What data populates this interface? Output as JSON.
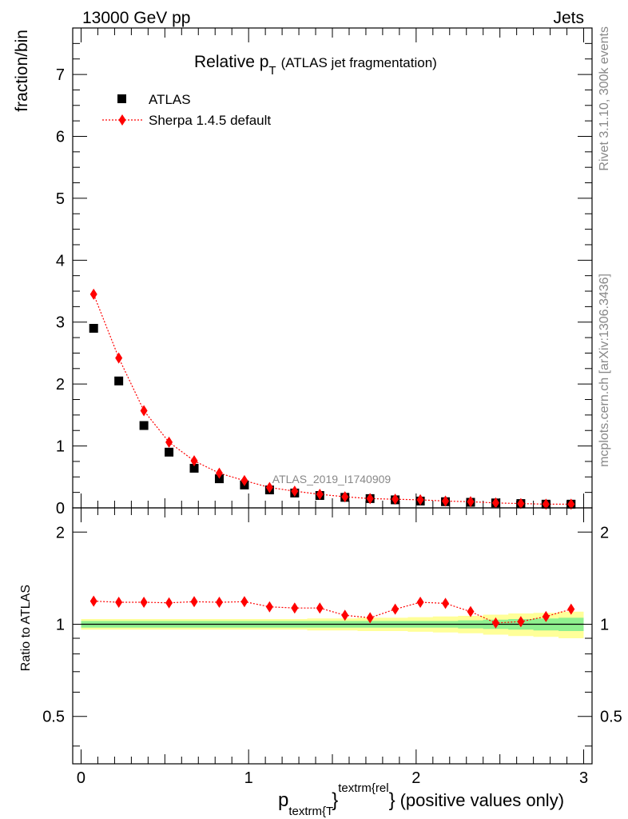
{
  "header": {
    "left": "13000 GeV pp",
    "right": "Jets"
  },
  "side_labels": {
    "rivet": "Rivet 3.1.10,  300k events",
    "mcplots": "mcplots.cern.ch [arXiv:1306.3436]"
  },
  "chart_data": [
    {
      "type": "scatter",
      "title": "Relative p",
      "title_sub": "T",
      "title_suffix": "(ATLAS jet fragmentation)",
      "ylabel": "fraction/bin",
      "watermark": "ATLAS_2019_I1740909",
      "xlim": [
        -0.05,
        3.05
      ],
      "ylim": [
        0,
        7.75
      ],
      "xticks": [
        "0",
        "1",
        "2",
        "3"
      ],
      "yticks": [
        "0",
        "1",
        "2",
        "3",
        "4",
        "5",
        "6",
        "7"
      ],
      "x": [
        0.075,
        0.225,
        0.375,
        0.525,
        0.675,
        0.825,
        0.975,
        1.125,
        1.275,
        1.425,
        1.575,
        1.725,
        1.875,
        2.025,
        2.175,
        2.325,
        2.475,
        2.625,
        2.775,
        2.925
      ],
      "series": [
        {
          "name": "ATLAS",
          "marker": "square",
          "color": "#000000",
          "values": [
            2.9,
            2.05,
            1.33,
            0.9,
            0.64,
            0.47,
            0.37,
            0.29,
            0.24,
            0.2,
            0.17,
            0.15,
            0.13,
            0.11,
            0.1,
            0.09,
            0.08,
            0.07,
            0.06,
            0.06
          ]
        },
        {
          "name": "Sherpa 1.4.5 default",
          "marker": "diamond",
          "color": "#ff0000",
          "values": [
            3.45,
            2.42,
            1.57,
            1.06,
            0.76,
            0.56,
            0.44,
            0.33,
            0.27,
            0.22,
            0.18,
            0.15,
            0.14,
            0.13,
            0.11,
            0.1,
            0.08,
            0.07,
            0.06,
            0.06
          ]
        }
      ]
    },
    {
      "type": "scatter",
      "ylabel": "Ratio to ATLAS",
      "xlabel_main": "p",
      "xlabel_sub": "textrm{T",
      "xlabel_sup": "textrm{rel",
      "xlabel_close": "}",
      "xlabel_suffix": "(positive values only)",
      "xlim": [
        -0.05,
        3.05
      ],
      "ylim": [
        0.35,
        2.4
      ],
      "yscale": "log",
      "xticks": [
        "0",
        "1",
        "2",
        "3"
      ],
      "yticks": [
        "0.5",
        "1",
        "2"
      ],
      "x": [
        0.075,
        0.225,
        0.375,
        0.525,
        0.675,
        0.825,
        0.975,
        1.125,
        1.275,
        1.425,
        1.575,
        1.725,
        1.875,
        2.025,
        2.175,
        2.325,
        2.475,
        2.625,
        2.775,
        2.925
      ],
      "reference": 1.0,
      "band_inner": [
        0.025,
        0.025,
        0.025,
        0.025,
        0.025,
        0.025,
        0.025,
        0.025,
        0.025,
        0.025,
        0.025,
        0.025,
        0.025,
        0.025,
        0.025,
        0.03,
        0.035,
        0.04,
        0.045,
        0.05
      ],
      "band_outer": [
        0.04,
        0.04,
        0.04,
        0.04,
        0.04,
        0.04,
        0.04,
        0.04,
        0.04,
        0.045,
        0.045,
        0.05,
        0.05,
        0.055,
        0.06,
        0.065,
        0.075,
        0.085,
        0.09,
        0.1
      ],
      "series": [
        {
          "name": "Sherpa 1.4.5 default",
          "color": "#ff0000",
          "values": [
            1.19,
            1.18,
            1.18,
            1.175,
            1.185,
            1.18,
            1.185,
            1.14,
            1.13,
            1.13,
            1.07,
            1.05,
            1.12,
            1.18,
            1.17,
            1.1,
            1.01,
            1.02,
            1.06,
            1.12
          ]
        }
      ]
    }
  ]
}
